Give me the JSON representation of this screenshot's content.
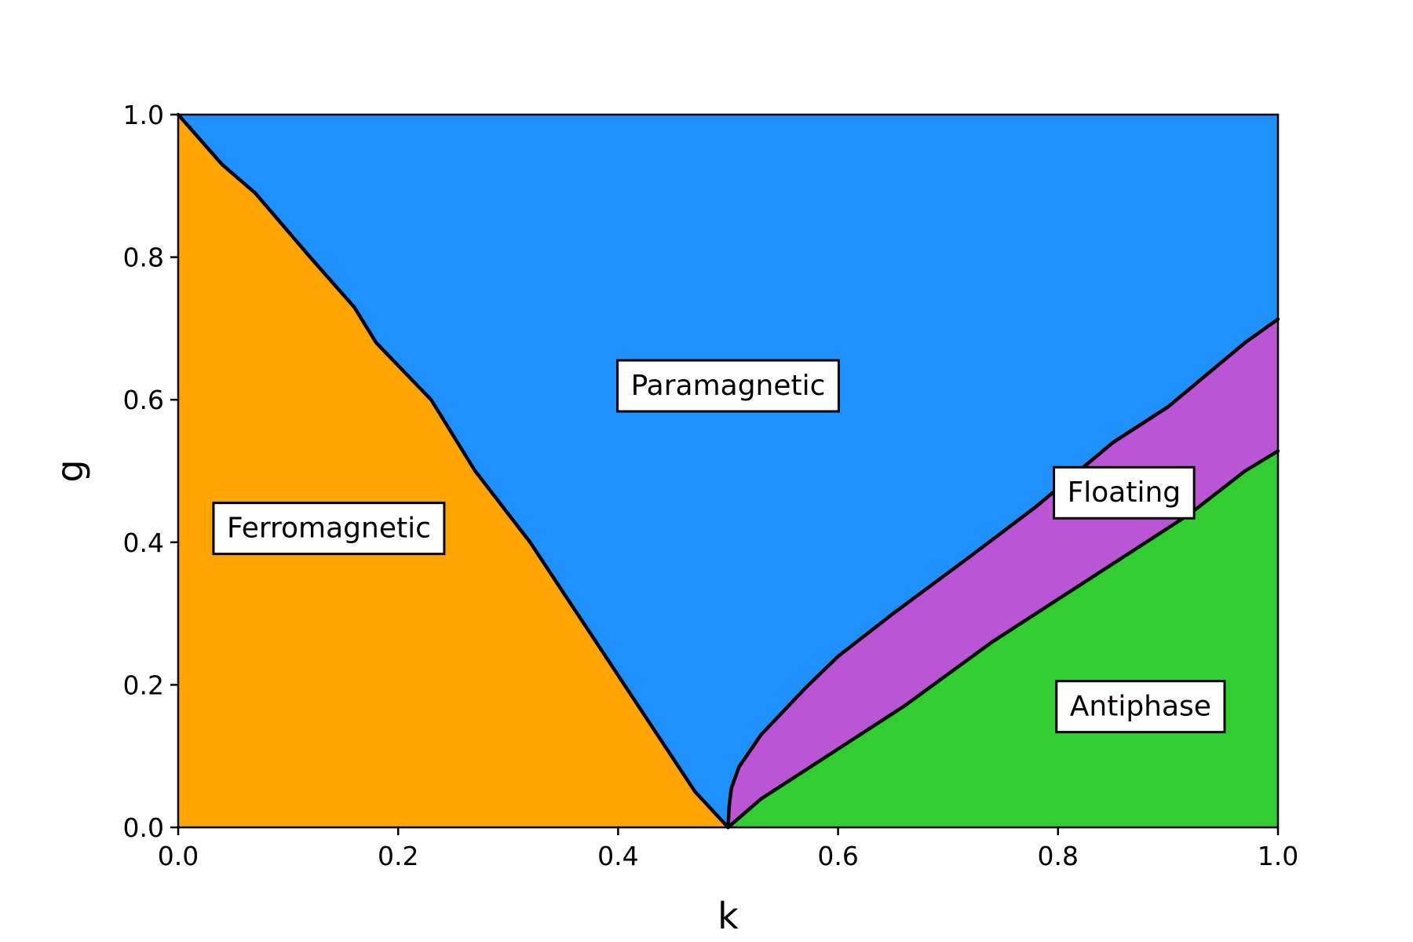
{
  "chart_data": {
    "type": "area",
    "title": "",
    "xlabel": "k",
    "ylabel": "g",
    "xlim": [
      0.0,
      1.0
    ],
    "ylim": [
      0.0,
      1.0
    ],
    "xticks": [
      "0.0",
      "0.2",
      "0.4",
      "0.6",
      "0.8",
      "1.0"
    ],
    "yticks": [
      "0.0",
      "0.2",
      "0.4",
      "0.6",
      "0.8",
      "1.0"
    ],
    "grid": false,
    "colors": {
      "ferromagnetic": "#ffa500",
      "paramagnetic": "#1e90ff",
      "floating": "#ba55d3",
      "antiphase": "#32cd32",
      "boundary": "#000000"
    },
    "boundaries": {
      "ferro_para": {
        "k": [
          0.0,
          0.04,
          0.07,
          0.12,
          0.16,
          0.18,
          0.23,
          0.27,
          0.29,
          0.32,
          0.35,
          0.38,
          0.41,
          0.44,
          0.47,
          0.5
        ],
        "g": [
          1.0,
          0.93,
          0.89,
          0.8,
          0.73,
          0.68,
          0.6,
          0.5,
          0.46,
          0.4,
          0.33,
          0.26,
          0.19,
          0.12,
          0.05,
          0.0
        ]
      },
      "para_floating": {
        "k": [
          0.5,
          0.501,
          0.503,
          0.51,
          0.53,
          0.57,
          0.6,
          0.65,
          0.72,
          0.78,
          0.85,
          0.9,
          0.97,
          1.0
        ],
        "g": [
          0.0,
          0.03,
          0.055,
          0.085,
          0.13,
          0.195,
          0.24,
          0.3,
          0.38,
          0.45,
          0.54,
          0.59,
          0.68,
          0.713
        ]
      },
      "floating_antiphase": {
        "k": [
          0.5,
          0.53,
          0.6,
          0.66,
          0.74,
          0.8,
          0.86,
          0.92,
          0.97,
          1.0
        ],
        "g": [
          0.0,
          0.04,
          0.11,
          0.17,
          0.26,
          0.32,
          0.38,
          0.44,
          0.5,
          0.528
        ]
      }
    },
    "region_labels": [
      {
        "text": "Ferromagnetic",
        "k": 0.137,
        "g": 0.42
      },
      {
        "text": "Paramagnetic",
        "k": 0.5,
        "g": 0.62
      },
      {
        "text": "Floating",
        "k": 0.86,
        "g": 0.47
      },
      {
        "text": "Antiphase",
        "k": 0.875,
        "g": 0.17
      }
    ]
  }
}
